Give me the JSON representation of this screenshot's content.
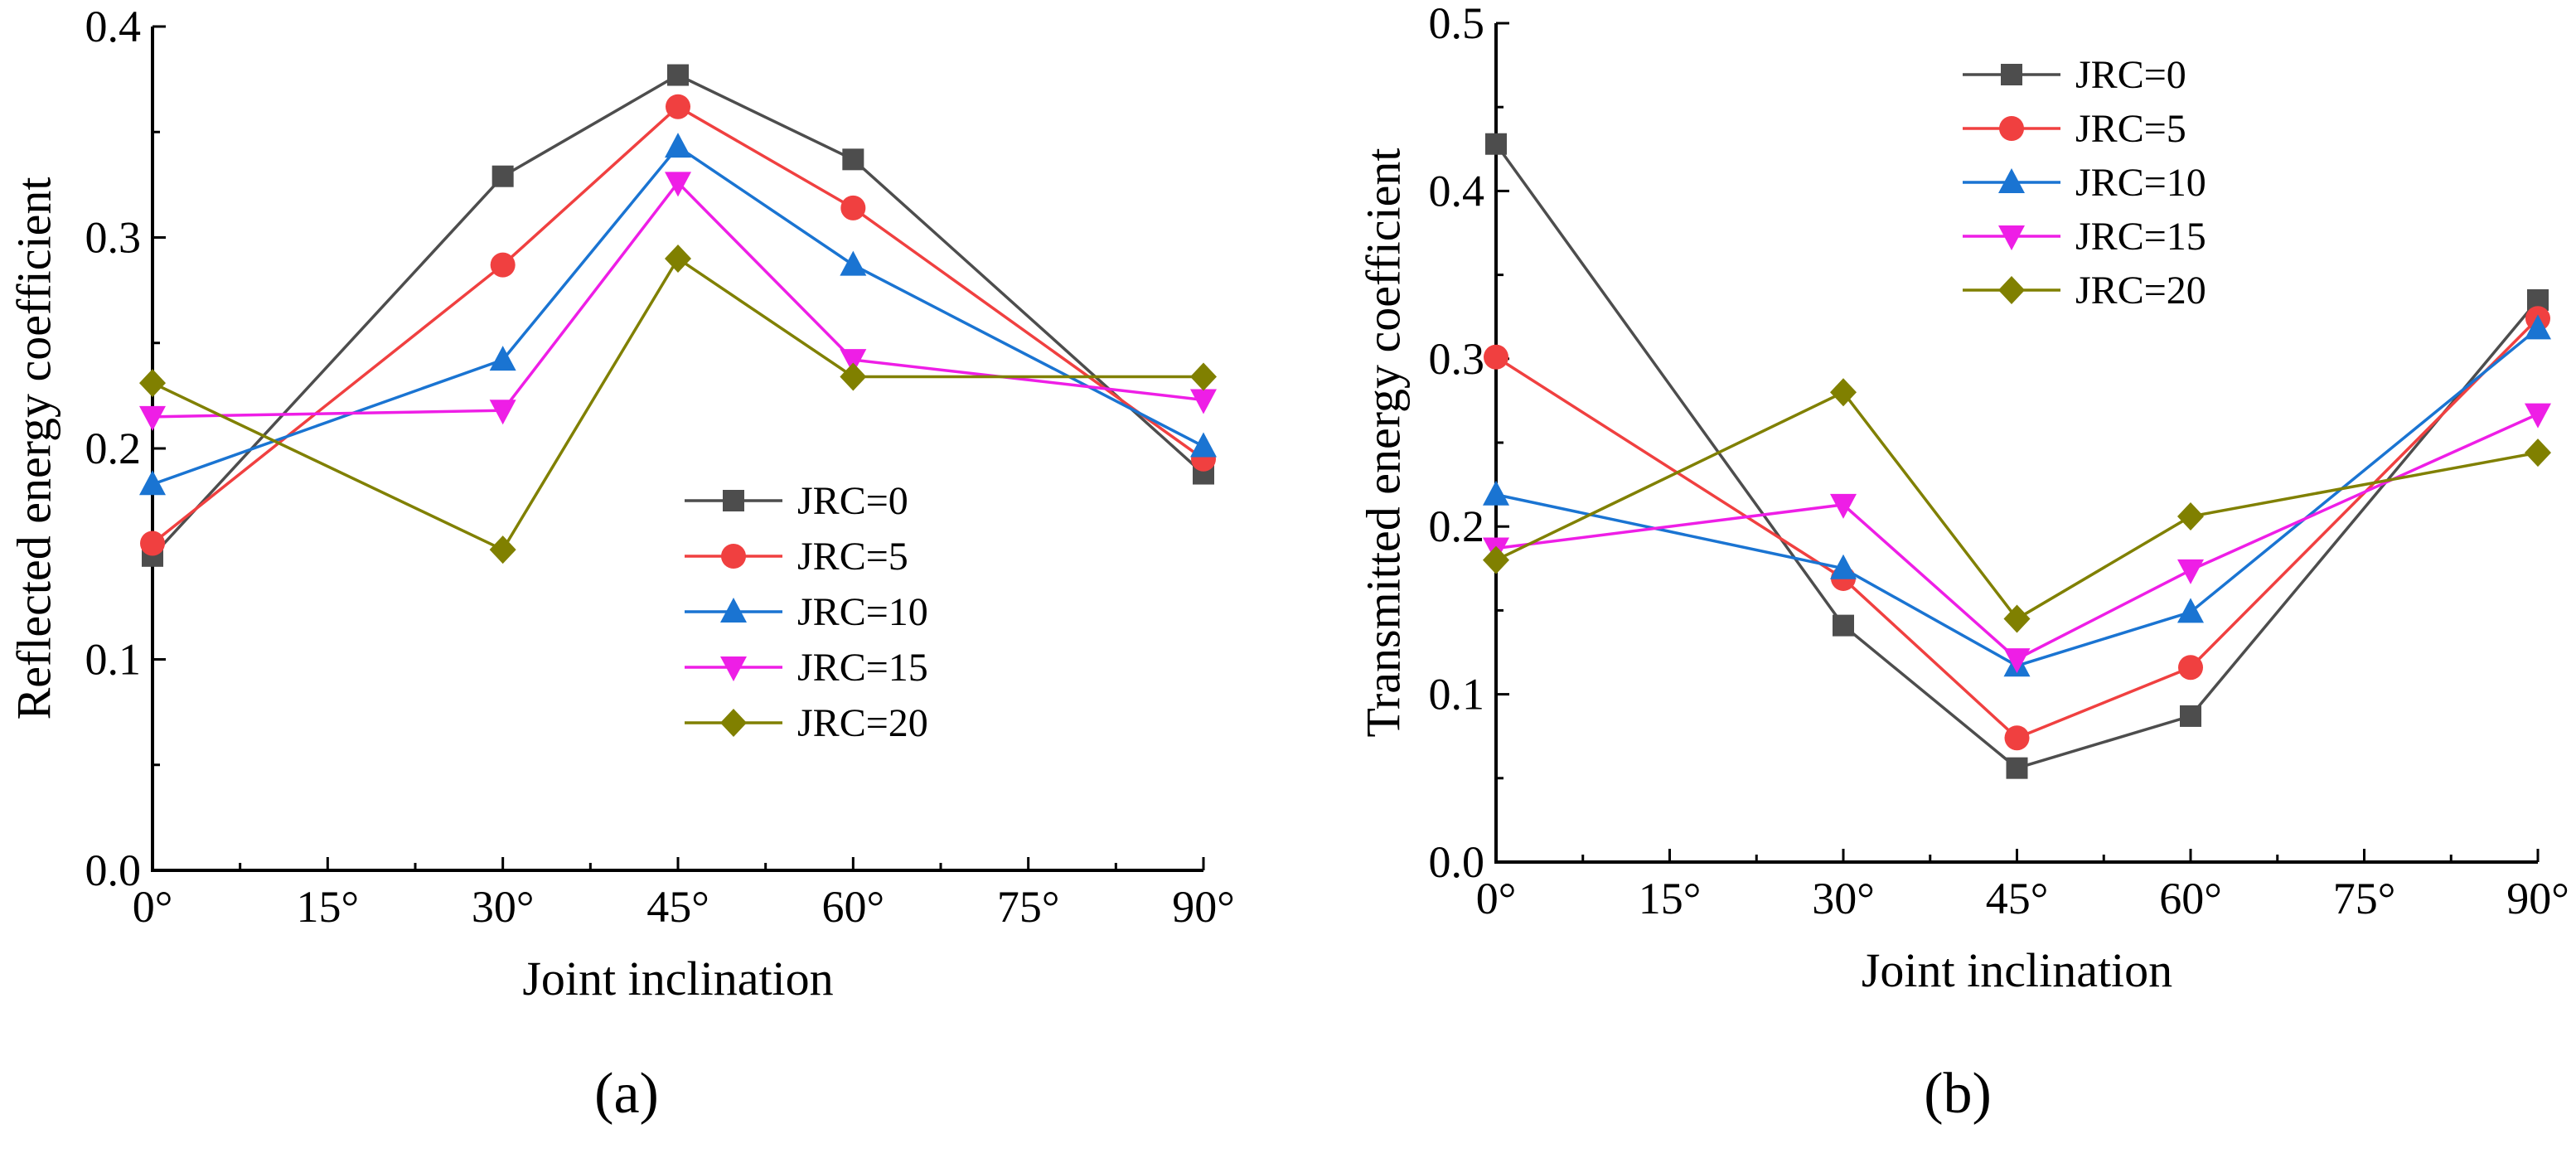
{
  "chart_data": [
    {
      "type": "line",
      "panel_label": "(a)",
      "xlabel": "Joint inclination",
      "ylabel": "Reflected energy coefficient",
      "x": [
        0,
        30,
        45,
        60,
        90
      ],
      "xlim": [
        0,
        90
      ],
      "ylim": [
        0,
        0.4
      ],
      "x_ticks": [
        0,
        15,
        30,
        45,
        60,
        75,
        90
      ],
      "x_tick_labels": [
        "0°",
        "15°",
        "30°",
        "45°",
        "60°",
        "75°",
        "90°"
      ],
      "y_ticks": [
        0,
        0.1,
        0.2,
        0.3,
        0.4
      ],
      "y_tick_labels": [
        "0.0",
        "0.1",
        "0.2",
        "0.3",
        "0.4"
      ],
      "legend_position": "center-right",
      "grid": false,
      "series": [
        {
          "name": "JRC=0",
          "color": "#4d4d4d",
          "marker": "square",
          "values": [
            0.149,
            0.329,
            0.377,
            0.337,
            0.188
          ]
        },
        {
          "name": "JRC=5",
          "color": "#f04040",
          "marker": "circle",
          "values": [
            0.155,
            0.287,
            0.362,
            0.314,
            0.195
          ]
        },
        {
          "name": "JRC=10",
          "color": "#1a74d2",
          "marker": "triangle-up",
          "values": [
            0.183,
            0.242,
            0.343,
            0.287,
            0.201
          ]
        },
        {
          "name": "JRC=15",
          "color": "#ee1ee6",
          "marker": "triangle-down",
          "values": [
            0.215,
            0.218,
            0.326,
            0.242,
            0.223
          ]
        },
        {
          "name": "JRC=20",
          "color": "#808000",
          "marker": "diamond",
          "values": [
            0.231,
            0.152,
            0.29,
            0.234,
            0.234
          ]
        }
      ]
    },
    {
      "type": "line",
      "panel_label": "(b)",
      "xlabel": "Joint inclination",
      "ylabel": "Transmitted energy coefficient",
      "x": [
        0,
        30,
        45,
        60,
        90
      ],
      "xlim": [
        0,
        90
      ],
      "ylim": [
        0,
        0.5
      ],
      "x_ticks": [
        0,
        15,
        30,
        45,
        60,
        75,
        90
      ],
      "x_tick_labels": [
        "0°",
        "15°",
        "30°",
        "45°",
        "60°",
        "75°",
        "90°"
      ],
      "y_ticks": [
        0,
        0.1,
        0.2,
        0.3,
        0.4,
        0.5
      ],
      "y_tick_labels": [
        "0.0",
        "0.1",
        "0.2",
        "0.3",
        "0.4",
        "0.5"
      ],
      "legend_position": "top-left",
      "grid": false,
      "series": [
        {
          "name": "JRC=0",
          "color": "#4d4d4d",
          "marker": "square",
          "values": [
            0.428,
            0.141,
            0.056,
            0.087,
            0.335
          ]
        },
        {
          "name": "JRC=5",
          "color": "#f04040",
          "marker": "circle",
          "values": [
            0.301,
            0.169,
            0.074,
            0.116,
            0.324
          ]
        },
        {
          "name": "JRC=10",
          "color": "#1a74d2",
          "marker": "triangle-up",
          "values": [
            0.219,
            0.175,
            0.117,
            0.149,
            0.318
          ]
        },
        {
          "name": "JRC=15",
          "color": "#ee1ee6",
          "marker": "triangle-down",
          "values": [
            0.187,
            0.213,
            0.121,
            0.174,
            0.267
          ]
        },
        {
          "name": "JRC=20",
          "color": "#808000",
          "marker": "diamond",
          "values": [
            0.18,
            0.28,
            0.145,
            0.206,
            0.244
          ]
        }
      ]
    }
  ]
}
